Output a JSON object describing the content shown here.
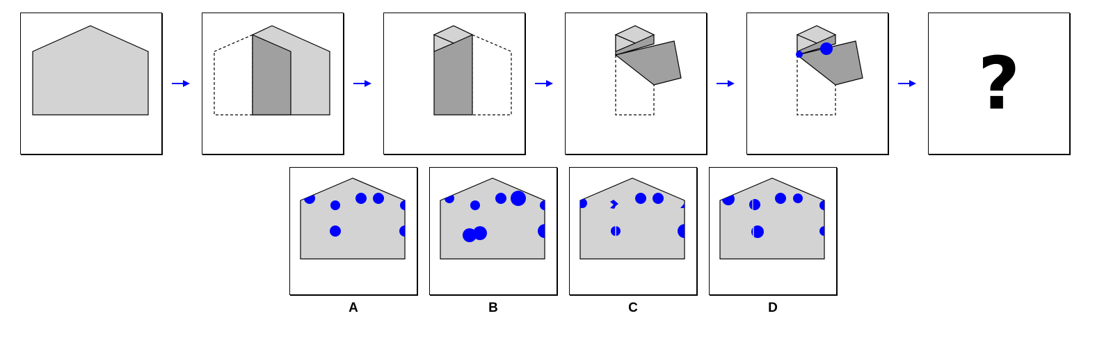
{
  "sequence": {
    "final_cell_text": "?"
  },
  "options": [
    {
      "label": "A"
    },
    {
      "label": "B"
    },
    {
      "label": "C"
    },
    {
      "label": "D"
    }
  ],
  "colors": {
    "paper_fill": "#d3d3d3",
    "folded_fill": "#a0a0a0",
    "outline": "#000000",
    "hole": "#0000ff",
    "arrow": "#0000ff"
  }
}
